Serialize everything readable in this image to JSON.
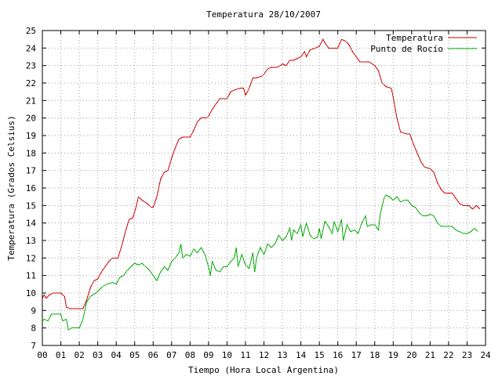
{
  "chart_data": {
    "type": "line",
    "title": "Temperatura 28/10/2007",
    "xlabel": "Tiempo (Hora Local Argentina)",
    "ylabel": "Temperatura (Grados Celsius)",
    "xlim": [
      0,
      24
    ],
    "ylim": [
      7,
      25
    ],
    "x_ticks": [
      "00",
      "01",
      "02",
      "03",
      "04",
      "05",
      "06",
      "07",
      "08",
      "09",
      "10",
      "11",
      "12",
      "13",
      "14",
      "15",
      "16",
      "17",
      "18",
      "19",
      "20",
      "21",
      "22",
      "23",
      "24"
    ],
    "y_ticks": [
      "7",
      "8",
      "9",
      "10",
      "11",
      "12",
      "13",
      "14",
      "15",
      "16",
      "17",
      "18",
      "19",
      "20",
      "21",
      "22",
      "23",
      "24",
      "25"
    ],
    "grid": true,
    "legend_position": "top-right",
    "colors": {
      "temperatura": "#cc0000",
      "punto_de_rocio": "#00aa00"
    },
    "series": [
      {
        "name": "Temperatura",
        "color": "#cc0000",
        "points": [
          [
            0.0,
            9.7
          ],
          [
            0.1,
            9.9
          ],
          [
            0.2,
            9.7
          ],
          [
            0.4,
            9.9
          ],
          [
            0.6,
            10.0
          ],
          [
            1.0,
            10.0
          ],
          [
            1.2,
            9.8
          ],
          [
            1.3,
            9.2
          ],
          [
            1.5,
            9.1
          ],
          [
            2.2,
            9.1
          ],
          [
            2.4,
            9.6
          ],
          [
            2.6,
            10.3
          ],
          [
            2.8,
            10.7
          ],
          [
            3.0,
            10.8
          ],
          [
            3.2,
            11.2
          ],
          [
            3.4,
            11.5
          ],
          [
            3.6,
            11.8
          ],
          [
            3.8,
            12.0
          ],
          [
            4.1,
            12.0
          ],
          [
            4.3,
            12.7
          ],
          [
            4.5,
            13.5
          ],
          [
            4.7,
            14.2
          ],
          [
            4.9,
            14.3
          ],
          [
            5.1,
            15.0
          ],
          [
            5.2,
            15.5
          ],
          [
            5.4,
            15.3
          ],
          [
            5.7,
            15.1
          ],
          [
            5.9,
            14.9
          ],
          [
            6.0,
            14.9
          ],
          [
            6.2,
            15.5
          ],
          [
            6.4,
            16.5
          ],
          [
            6.6,
            16.9
          ],
          [
            6.8,
            17.0
          ],
          [
            7.0,
            17.7
          ],
          [
            7.2,
            18.3
          ],
          [
            7.4,
            18.8
          ],
          [
            7.6,
            18.9
          ],
          [
            8.0,
            18.9
          ],
          [
            8.2,
            19.3
          ],
          [
            8.4,
            19.8
          ],
          [
            8.6,
            20.0
          ],
          [
            8.9,
            20.0
          ],
          [
            9.0,
            20.1
          ],
          [
            9.2,
            20.5
          ],
          [
            9.4,
            20.8
          ],
          [
            9.6,
            21.1
          ],
          [
            10.0,
            21.1
          ],
          [
            10.2,
            21.5
          ],
          [
            10.4,
            21.6
          ],
          [
            10.7,
            21.7
          ],
          [
            10.9,
            21.7
          ],
          [
            11.0,
            21.3
          ],
          [
            11.2,
            21.7
          ],
          [
            11.4,
            22.3
          ],
          [
            11.6,
            22.3
          ],
          [
            11.9,
            22.4
          ],
          [
            12.0,
            22.5
          ],
          [
            12.2,
            22.8
          ],
          [
            12.4,
            22.9
          ],
          [
            12.7,
            22.9
          ],
          [
            12.9,
            23.0
          ],
          [
            13.0,
            23.1
          ],
          [
            13.2,
            23.0
          ],
          [
            13.4,
            23.3
          ],
          [
            13.6,
            23.3
          ],
          [
            13.8,
            23.4
          ],
          [
            14.0,
            23.5
          ],
          [
            14.2,
            23.8
          ],
          [
            14.3,
            23.5
          ],
          [
            14.5,
            23.9
          ],
          [
            14.8,
            24.0
          ],
          [
            15.0,
            24.1
          ],
          [
            15.2,
            24.5
          ],
          [
            15.3,
            24.3
          ],
          [
            15.5,
            24.0
          ],
          [
            16.0,
            24.0
          ],
          [
            16.2,
            24.5
          ],
          [
            16.4,
            24.4
          ],
          [
            16.6,
            24.2
          ],
          [
            16.8,
            23.8
          ],
          [
            17.0,
            23.5
          ],
          [
            17.2,
            23.2
          ],
          [
            17.5,
            23.2
          ],
          [
            17.7,
            23.2
          ],
          [
            18.0,
            23.0
          ],
          [
            18.2,
            22.7
          ],
          [
            18.4,
            22.0
          ],
          [
            18.6,
            21.8
          ],
          [
            18.9,
            21.7
          ],
          [
            19.0,
            21.2
          ],
          [
            19.2,
            20.0
          ],
          [
            19.4,
            19.2
          ],
          [
            19.7,
            19.1
          ],
          [
            19.9,
            19.1
          ],
          [
            20.1,
            18.5
          ],
          [
            20.3,
            18.0
          ],
          [
            20.5,
            17.5
          ],
          [
            20.7,
            17.2
          ],
          [
            21.0,
            17.1
          ],
          [
            21.2,
            16.9
          ],
          [
            21.4,
            16.3
          ],
          [
            21.6,
            15.9
          ],
          [
            21.8,
            15.7
          ],
          [
            22.2,
            15.7
          ],
          [
            22.4,
            15.4
          ],
          [
            22.6,
            15.1
          ],
          [
            22.8,
            15.0
          ],
          [
            23.1,
            15.0
          ],
          [
            23.3,
            14.8
          ],
          [
            23.5,
            15.0
          ],
          [
            23.7,
            14.8
          ]
        ]
      },
      {
        "name": "Punto de Rocío",
        "color": "#00aa00",
        "points": [
          [
            0.0,
            8.4
          ],
          [
            0.1,
            8.5
          ],
          [
            0.3,
            8.4
          ],
          [
            0.5,
            8.8
          ],
          [
            1.0,
            8.8
          ],
          [
            1.1,
            8.4
          ],
          [
            1.3,
            8.5
          ],
          [
            1.4,
            7.9
          ],
          [
            1.6,
            8.0
          ],
          [
            2.0,
            8.0
          ],
          [
            2.2,
            8.5
          ],
          [
            2.4,
            9.5
          ],
          [
            2.6,
            9.8
          ],
          [
            2.9,
            10.0
          ],
          [
            3.1,
            10.2
          ],
          [
            3.3,
            10.4
          ],
          [
            3.5,
            10.5
          ],
          [
            3.8,
            10.6
          ],
          [
            4.0,
            10.5
          ],
          [
            4.2,
            10.9
          ],
          [
            4.4,
            11.0
          ],
          [
            4.6,
            11.3
          ],
          [
            4.8,
            11.5
          ],
          [
            5.0,
            11.7
          ],
          [
            5.2,
            11.6
          ],
          [
            5.4,
            11.7
          ],
          [
            5.6,
            11.5
          ],
          [
            5.8,
            11.3
          ],
          [
            6.0,
            11.0
          ],
          [
            6.2,
            10.7
          ],
          [
            6.4,
            11.2
          ],
          [
            6.6,
            11.5
          ],
          [
            6.8,
            11.3
          ],
          [
            7.0,
            11.8
          ],
          [
            7.2,
            12.0
          ],
          [
            7.4,
            12.3
          ],
          [
            7.5,
            12.8
          ],
          [
            7.6,
            12.0
          ],
          [
            7.8,
            12.2
          ],
          [
            8.0,
            12.1
          ],
          [
            8.2,
            12.5
          ],
          [
            8.4,
            12.3
          ],
          [
            8.6,
            12.6
          ],
          [
            8.8,
            12.2
          ],
          [
            9.0,
            11.5
          ],
          [
            9.1,
            11.0
          ],
          [
            9.2,
            11.8
          ],
          [
            9.4,
            11.3
          ],
          [
            9.6,
            11.2
          ],
          [
            9.8,
            11.5
          ],
          [
            10.0,
            11.5
          ],
          [
            10.2,
            11.8
          ],
          [
            10.4,
            12.0
          ],
          [
            10.5,
            12.6
          ],
          [
            10.6,
            11.5
          ],
          [
            10.8,
            12.2
          ],
          [
            11.0,
            11.6
          ],
          [
            11.2,
            11.4
          ],
          [
            11.4,
            12.3
          ],
          [
            11.5,
            11.2
          ],
          [
            11.6,
            12.0
          ],
          [
            11.8,
            12.6
          ],
          [
            12.0,
            12.2
          ],
          [
            12.2,
            12.8
          ],
          [
            12.4,
            12.6
          ],
          [
            12.6,
            12.8
          ],
          [
            12.8,
            13.3
          ],
          [
            13.0,
            13.0
          ],
          [
            13.2,
            13.2
          ],
          [
            13.4,
            13.7
          ],
          [
            13.5,
            13.0
          ],
          [
            13.6,
            13.6
          ],
          [
            13.8,
            13.4
          ],
          [
            14.0,
            13.9
          ],
          [
            14.1,
            13.2
          ],
          [
            14.3,
            14.0
          ],
          [
            14.5,
            13.3
          ],
          [
            14.7,
            13.1
          ],
          [
            14.9,
            13.2
          ],
          [
            15.0,
            13.7
          ],
          [
            15.1,
            13.1
          ],
          [
            15.3,
            14.1
          ],
          [
            15.5,
            13.8
          ],
          [
            15.7,
            13.4
          ],
          [
            15.8,
            14.1
          ],
          [
            16.0,
            13.5
          ],
          [
            16.2,
            14.2
          ],
          [
            16.3,
            13.0
          ],
          [
            16.5,
            13.9
          ],
          [
            16.7,
            13.5
          ],
          [
            16.9,
            13.6
          ],
          [
            17.1,
            13.4
          ],
          [
            17.3,
            14.0
          ],
          [
            17.5,
            14.4
          ],
          [
            17.6,
            13.8
          ],
          [
            17.8,
            13.9
          ],
          [
            18.0,
            13.9
          ],
          [
            18.2,
            13.6
          ],
          [
            18.3,
            14.5
          ],
          [
            18.5,
            15.4
          ],
          [
            18.6,
            15.6
          ],
          [
            18.8,
            15.5
          ],
          [
            19.0,
            15.3
          ],
          [
            19.2,
            15.5
          ],
          [
            19.4,
            15.2
          ],
          [
            19.6,
            15.3
          ],
          [
            19.8,
            15.3
          ],
          [
            20.0,
            15.0
          ],
          [
            20.2,
            14.9
          ],
          [
            20.4,
            14.6
          ],
          [
            20.6,
            14.4
          ],
          [
            20.8,
            14.4
          ],
          [
            21.0,
            14.5
          ],
          [
            21.2,
            14.4
          ],
          [
            21.4,
            14.0
          ],
          [
            21.6,
            13.8
          ],
          [
            21.8,
            13.8
          ],
          [
            22.2,
            13.8
          ],
          [
            22.4,
            13.6
          ],
          [
            22.6,
            13.5
          ],
          [
            22.8,
            13.4
          ],
          [
            23.0,
            13.4
          ],
          [
            23.2,
            13.5
          ],
          [
            23.4,
            13.7
          ],
          [
            23.6,
            13.5
          ]
        ]
      }
    ]
  }
}
